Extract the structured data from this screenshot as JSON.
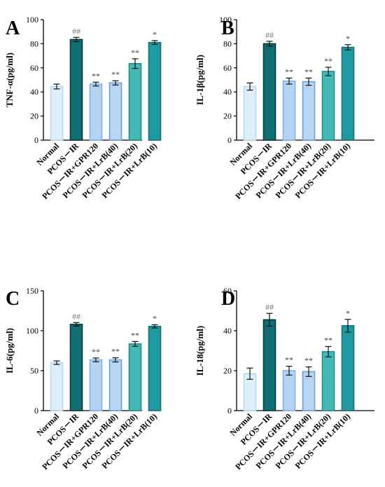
{
  "chart_data": [
    {
      "type": "bar",
      "panel": "A",
      "ylabel": "TNF-α(pg/ml)",
      "ylim": [
        0,
        100
      ],
      "yticks": [
        0,
        20,
        40,
        60,
        80,
        100
      ],
      "categories": [
        "Normal",
        "PCOS－IR",
        "PCOS－IR+GPR120",
        "PCOS－IR+LrB(40)",
        "PCOS－IR+LrB(20)",
        "PCOS－IR+LrB(10)"
      ],
      "values": [
        44.5,
        83.5,
        46.5,
        47.5,
        63.5,
        81.0
      ],
      "errors": [
        2.0,
        1.8,
        1.6,
        1.8,
        4.0,
        1.6
      ],
      "annotations": [
        "",
        "##",
        "**",
        "**",
        "**",
        "*"
      ]
    },
    {
      "type": "bar",
      "panel": "B",
      "ylabel": "IL-1β(pg/ml)",
      "ylim": [
        0,
        100
      ],
      "yticks": [
        0,
        20,
        40,
        60,
        80,
        100
      ],
      "categories": [
        "Normal",
        "PCOS－IR",
        "PCOS－IR+GPR120",
        "PCOS－IR+LrB(40)",
        "PCOS－IR+LrB(20)",
        "PCOS－IR+LrB(10)"
      ],
      "values": [
        44.5,
        80.0,
        49.0,
        48.5,
        57.0,
        77.0
      ],
      "errors": [
        3.0,
        2.0,
        2.5,
        3.0,
        3.5,
        2.2
      ],
      "annotations": [
        "",
        "##",
        "**",
        "**",
        "**",
        "*"
      ]
    },
    {
      "type": "bar",
      "panel": "C",
      "ylabel": "IL-6(pg/ml)",
      "ylim": [
        0,
        150
      ],
      "yticks": [
        0,
        50,
        100,
        150
      ],
      "categories": [
        "Normal",
        "PCOS－IR",
        "PCOS－IR+GPR120",
        "PCOS－IR+LrB(40)",
        "PCOS－IR+LrB(20)",
        "PCOS－IR+LrB(10)"
      ],
      "values": [
        60.0,
        108.0,
        63.5,
        63.5,
        83.5,
        105.5
      ],
      "errors": [
        2.2,
        2.2,
        2.4,
        2.6,
        3.0,
        2.0
      ],
      "annotations": [
        "",
        "##",
        "**",
        "**",
        "**",
        "*"
      ]
    },
    {
      "type": "bar",
      "panel": "D",
      "ylabel": "IL-18(pg/ml)",
      "ylim": [
        0,
        60
      ],
      "yticks": [
        0,
        20,
        40,
        60
      ],
      "categories": [
        "Normal",
        "PCOS－IR",
        "PCOS－IR+GPR120",
        "PCOS－IR+LrB(40)",
        "PCOS－IR+LrB(20)",
        "PCOS－IR+LrB(10)"
      ],
      "values": [
        18.5,
        45.5,
        20.0,
        19.5,
        29.5,
        42.5
      ],
      "errors": [
        2.8,
        3.2,
        2.2,
        2.4,
        2.6,
        3.2
      ],
      "annotations": [
        "",
        "##",
        "**",
        "**",
        "**",
        "*"
      ]
    }
  ],
  "style": {
    "bar_fills": [
      "#ddeefb",
      "#0f6f72",
      "#b5d4f4",
      "#b8d5f4",
      "#44b9b6",
      "#1e9aa0"
    ],
    "bar_edges": [
      "#b9d7ee",
      "#08393b",
      "#7eb2e8",
      "#6b9fd8",
      "#1e8d8c",
      "#166f79"
    ]
  }
}
